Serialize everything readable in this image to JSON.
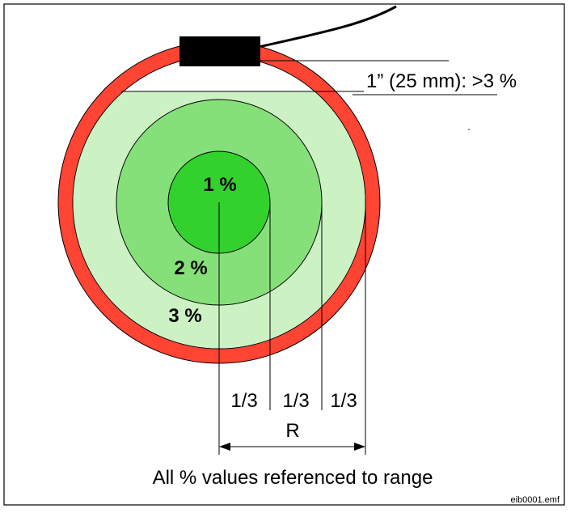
{
  "diagram": {
    "zones": [
      {
        "label": "1 %"
      },
      {
        "label": "2 %"
      },
      {
        "label": "3 %"
      }
    ],
    "sensor_note": "1” (25 mm): >3 %",
    "thirds": [
      "1/3",
      "1/3",
      "1/3"
    ],
    "radius_label": "R",
    "caption": "All % values referenced to range",
    "file_id": "eib0001.emf"
  }
}
